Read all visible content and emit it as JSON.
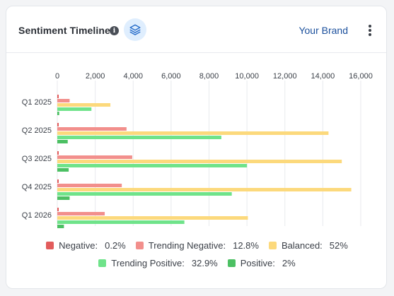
{
  "header": {
    "title": "Sentiment Timeline",
    "brand": "Your Brand"
  },
  "chart_data": {
    "type": "bar",
    "orientation": "horizontal",
    "categories": [
      "Q1 2025",
      "Q2 2025",
      "Q3 2025",
      "Q4 2025",
      "Q1 2026"
    ],
    "xlim": [
      0,
      16000
    ],
    "xticks": [
      "0",
      "2,000",
      "4,000",
      "6,000",
      "8,000",
      "10,000",
      "12,000",
      "14,000",
      "16,000"
    ],
    "grid": true,
    "legend_position": "bottom",
    "series": [
      {
        "name": "Negative",
        "pct": "0.2%",
        "color": "#e25c5c",
        "values": [
          20,
          40,
          60,
          50,
          30
        ]
      },
      {
        "name": "Trending Negative",
        "pct": "12.8%",
        "color": "#f28f8c",
        "values": [
          650,
          3650,
          3950,
          3400,
          2500
        ]
      },
      {
        "name": "Balanced",
        "pct": "52%",
        "color": "#fcd97c",
        "values": [
          2800,
          14300,
          15000,
          15500,
          10050
        ]
      },
      {
        "name": "Trending Positive",
        "pct": "32.9%",
        "color": "#6fe38a",
        "values": [
          1800,
          8650,
          10000,
          9200,
          6700
        ]
      },
      {
        "name": "Positive",
        "pct": "2%",
        "color": "#4cc063",
        "values": [
          100,
          550,
          600,
          650,
          350
        ]
      }
    ]
  }
}
